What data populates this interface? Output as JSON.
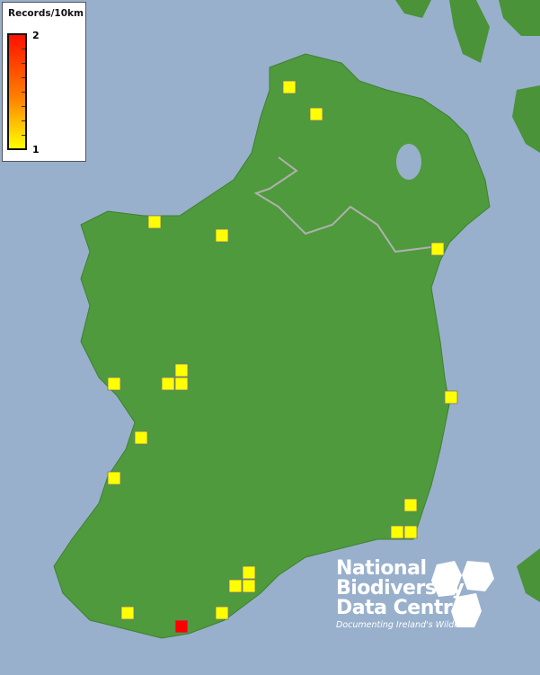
{
  "legend": {
    "title": "Records/10km",
    "max_label": "2",
    "min_label": "1",
    "color_min": "#ffff00",
    "color_max": "#ff0000"
  },
  "records": [
    1,
    1,
    1,
    1,
    1,
    1,
    1,
    1,
    1,
    1,
    1,
    1,
    1,
    1,
    1,
    1,
    1,
    1,
    1,
    1,
    2
  ],
  "logo": {
    "line1": "National",
    "line2": "Biodiversity",
    "line3": "Data Centre",
    "tagline": "Documenting Ireland's Wildlife"
  },
  "colors": {
    "sea": "#98b0cc",
    "land": "#4f9a3c",
    "border": "#aaaaaa"
  }
}
